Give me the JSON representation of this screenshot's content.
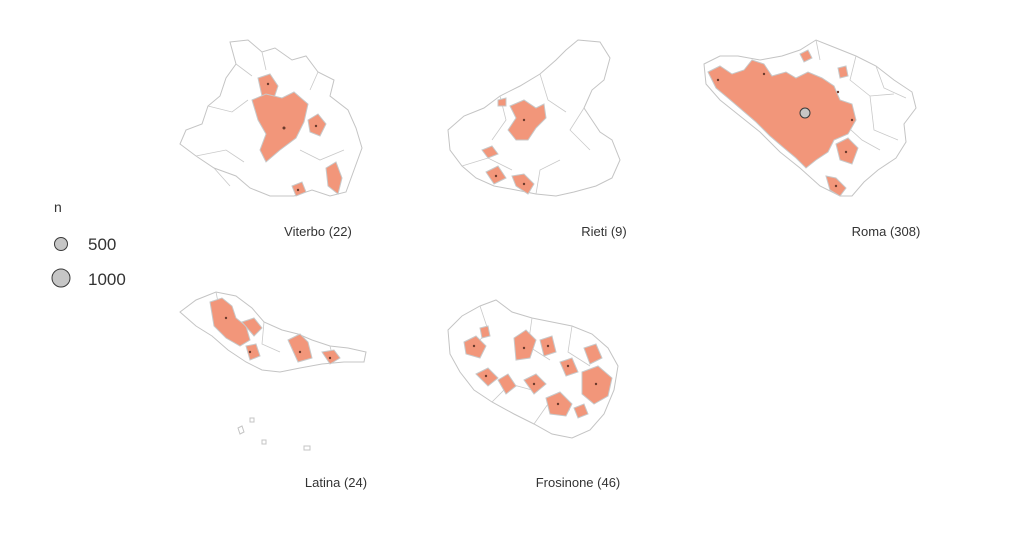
{
  "provinces": [
    {
      "key": "viterbo",
      "label": "Viterbo (22)"
    },
    {
      "key": "rieti",
      "label": "Rieti (9)"
    },
    {
      "key": "roma",
      "label": "Roma (308)"
    },
    {
      "key": "latina",
      "label": "Latina (24)"
    },
    {
      "key": "frosinone",
      "label": "Frosinone (46)"
    }
  ],
  "legend": {
    "title": "n",
    "items": [
      {
        "label": "500",
        "value": 500
      },
      {
        "label": "1000",
        "value": 1000
      }
    ]
  },
  "colors": {
    "highlight_fill": "#f2967a",
    "border": "#c4c4c4",
    "bubble_fill": "#c6c6c6",
    "bubble_stroke": "#3a3a3a"
  }
}
